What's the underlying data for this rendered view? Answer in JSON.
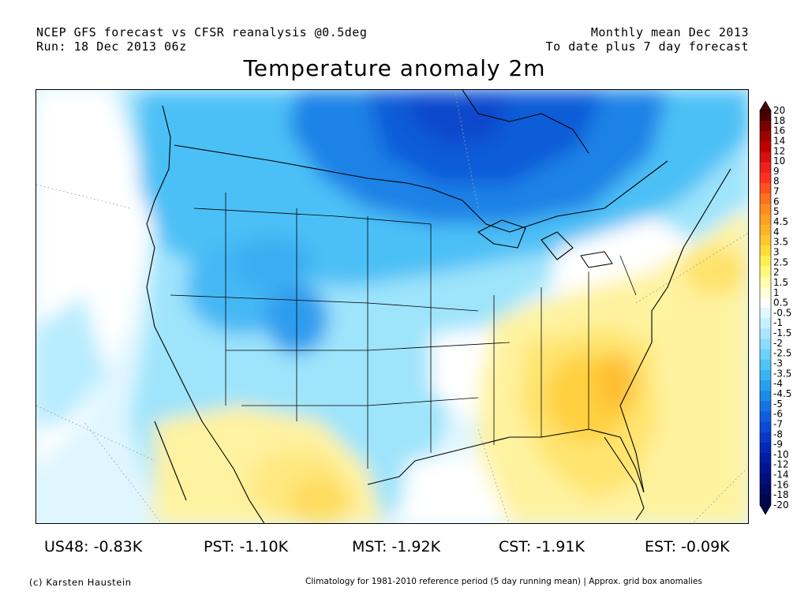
{
  "header": {
    "left_line1": "NCEP GFS forecast vs CFSR reanalysis @0.5deg",
    "left_line2": "Run: 18 Dec 2013 06z",
    "right_line1": "Monthly mean Dec 2013",
    "right_line2": "To date plus 7 day forecast"
  },
  "title": "Temperature anomaly 2m",
  "colorbar": {
    "units": "K",
    "levels": [
      "20",
      "18",
      "16",
      "14",
      "12",
      "10",
      "9",
      "8",
      "7",
      "6",
      "5",
      "4.5",
      "4",
      "3.5",
      "3",
      "2.5",
      "2",
      "1.5",
      "1",
      "0.5",
      "-0.5",
      "-1",
      "-1.5",
      "-2",
      "-2.5",
      "-3",
      "-3.5",
      "-4",
      "-4.5",
      "-5",
      "-6",
      "-7",
      "-8",
      "-9",
      "-10",
      "-12",
      "-14",
      "-16",
      "-18",
      "-20"
    ],
    "colors": [
      "#4a0000",
      "#7a0000",
      "#a00000",
      "#c00000",
      "#d81010",
      "#ee2020",
      "#ff3020",
      "#ff5020",
      "#ff7020",
      "#ff8c20",
      "#ffa020",
      "#ffb428",
      "#ffc830",
      "#ffdc38",
      "#ffee50",
      "#fff878",
      "#ffffaa",
      "#ffffd4",
      "#ffffff",
      "#e0f8ff",
      "#c4f0ff",
      "#a8e6ff",
      "#88dcff",
      "#6cd2fa",
      "#50c4f6",
      "#38b4f2",
      "#28a0ee",
      "#1c8ae8",
      "#1474e2",
      "#0e5edc",
      "#0a4ad4",
      "#0838c8",
      "#0628b8",
      "#041ca4",
      "#031490",
      "#020e7a",
      "#020a64",
      "#01064e"
    ]
  },
  "stats": {
    "us48": "US48: -0.83K",
    "pst": "PST: -1.10K",
    "mst": "MST: -1.92K",
    "cst": "CST: -1.91K",
    "est": "EST: -0.09K"
  },
  "footer": {
    "credit": "(c) Karsten Haustein",
    "note": "Climatology for 1981-2010 reference period (5 day running mean) | Approx. grid box anomalies"
  }
}
